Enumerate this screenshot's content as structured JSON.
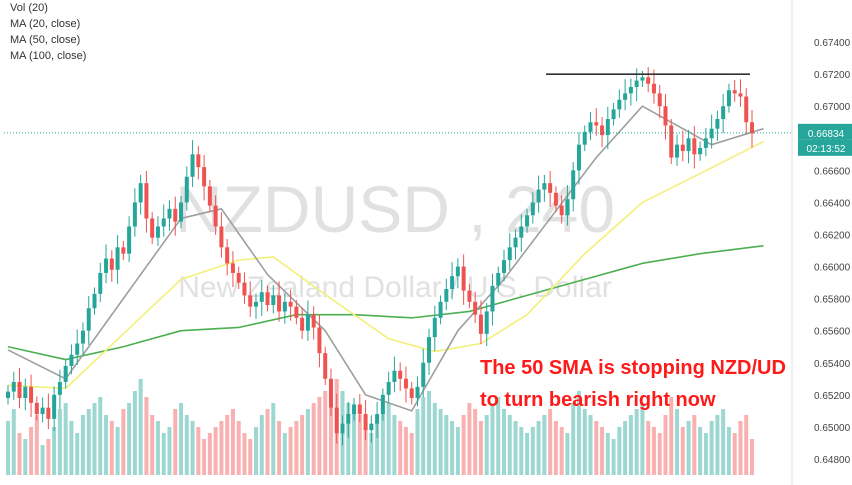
{
  "chart_data": {
    "type": "candlestick",
    "symbol": "NZDUSD",
    "interval": "240",
    "instrument_name": "New Zealand Dollar / U.S. Dollar",
    "watermark": {
      "symbol": "NZDUSD",
      "interval": "240",
      "name": "New Zealand Dollar / U.S. Dollar"
    },
    "legend": [
      "Vol (20)",
      "MA (20, close)",
      "MA (50, close)",
      "MA (100, close)"
    ],
    "y_axis": {
      "min": 0.647,
      "max": 0.676,
      "ticks": [
        "0.67400",
        "0.67200",
        "0.67000",
        "0.66800",
        "0.66600",
        "0.66400",
        "0.66200",
        "0.66000",
        "0.65800",
        "0.65600",
        "0.65400",
        "0.65200",
        "0.65000",
        "0.64800"
      ]
    },
    "last_price_label": "0.66834",
    "countdown_label": "02:13:52",
    "last_price": 0.66834,
    "resistance_level": 0.672,
    "annotation": [
      "The 50 SMA is stopping NZD/UD",
      "to turn bearish right now"
    ],
    "colors": {
      "up": "#26a69a",
      "down": "#ef5350",
      "ma20": "#9e9e9e",
      "ma50": "#f2f078",
      "ma100": "#4caf50",
      "annotation": "#ff1a1a",
      "resistance": "#333333",
      "price_label_bg": "#26a69a"
    },
    "closes": [
      0.6522,
      0.6528,
      0.6518,
      0.6525,
      0.6515,
      0.6508,
      0.6512,
      0.6505,
      0.652,
      0.6528,
      0.6538,
      0.6545,
      0.6552,
      0.656,
      0.6574,
      0.6583,
      0.6596,
      0.6605,
      0.6598,
      0.6612,
      0.6608,
      0.6625,
      0.664,
      0.6652,
      0.663,
      0.6618,
      0.6625,
      0.663,
      0.6636,
      0.6628,
      0.664,
      0.6656,
      0.667,
      0.6662,
      0.665,
      0.6638,
      0.6625,
      0.6612,
      0.6602,
      0.6596,
      0.659,
      0.6582,
      0.6575,
      0.6578,
      0.6584,
      0.6576,
      0.6582,
      0.6572,
      0.6578,
      0.6575,
      0.6568,
      0.656,
      0.657,
      0.6562,
      0.6546,
      0.653,
      0.6512,
      0.6496,
      0.6502,
      0.6508,
      0.6514,
      0.6508,
      0.6498,
      0.6502,
      0.6508,
      0.652,
      0.6528,
      0.6535,
      0.653,
      0.6524,
      0.6518,
      0.6525,
      0.654,
      0.6556,
      0.6568,
      0.6578,
      0.6586,
      0.6594,
      0.66,
      0.6585,
      0.6578,
      0.657,
      0.6558,
      0.6572,
      0.6588,
      0.6596,
      0.6604,
      0.6612,
      0.6618,
      0.6625,
      0.6632,
      0.664,
      0.6648,
      0.6652,
      0.6646,
      0.6638,
      0.6632,
      0.6642,
      0.666,
      0.6676,
      0.6684,
      0.669,
      0.6688,
      0.6682,
      0.6692,
      0.6698,
      0.6704,
      0.6708,
      0.6712,
      0.6716,
      0.6718,
      0.6714,
      0.6708,
      0.67,
      0.6688,
      0.6668,
      0.6676,
      0.6672,
      0.668,
      0.667,
      0.6674,
      0.668,
      0.6686,
      0.6692,
      0.67,
      0.671,
      0.6708,
      0.6706,
      0.669,
      0.6683
    ],
    "volumes": [
      0.45,
      0.55,
      0.35,
      0.3,
      0.4,
      0.5,
      0.25,
      0.3,
      0.4,
      0.55,
      0.6,
      0.45,
      0.35,
      0.5,
      0.55,
      0.6,
      0.65,
      0.5,
      0.45,
      0.4,
      0.55,
      0.6,
      0.7,
      0.8,
      0.65,
      0.5,
      0.45,
      0.35,
      0.4,
      0.55,
      0.6,
      0.5,
      0.45,
      0.4,
      0.3,
      0.35,
      0.4,
      0.45,
      0.5,
      0.55,
      0.45,
      0.35,
      0.3,
      0.4,
      0.5,
      0.55,
      0.6,
      0.45,
      0.35,
      0.4,
      0.45,
      0.5,
      0.55,
      0.6,
      0.65,
      0.7,
      0.75,
      0.8,
      0.7,
      0.6,
      0.55,
      0.5,
      0.4,
      0.35,
      0.45,
      0.55,
      0.6,
      0.5,
      0.45,
      0.4,
      0.35,
      0.55,
      0.65,
      0.7,
      0.6,
      0.55,
      0.5,
      0.45,
      0.4,
      0.5,
      0.6,
      0.55,
      0.45,
      0.5,
      0.6,
      0.65,
      0.55,
      0.5,
      0.45,
      0.4,
      0.35,
      0.4,
      0.45,
      0.5,
      0.55,
      0.45,
      0.4,
      0.35,
      0.6,
      0.7,
      0.55,
      0.5,
      0.45,
      0.4,
      0.35,
      0.3,
      0.4,
      0.45,
      0.5,
      0.55,
      0.6,
      0.45,
      0.4,
      0.35,
      0.5,
      0.65,
      0.55,
      0.4,
      0.45,
      0.5,
      0.4,
      0.35,
      0.45,
      0.5,
      0.55,
      0.4,
      0.35,
      0.45,
      0.5,
      0.3
    ],
    "ma20": [
      [
        0,
        0.6548
      ],
      [
        10,
        0.653
      ],
      [
        20,
        0.658
      ],
      [
        30,
        0.663
      ],
      [
        37,
        0.6636
      ],
      [
        45,
        0.6595
      ],
      [
        55,
        0.656
      ],
      [
        62,
        0.652
      ],
      [
        70,
        0.651
      ],
      [
        78,
        0.656
      ],
      [
        86,
        0.6592
      ],
      [
        94,
        0.663
      ],
      [
        102,
        0.6668
      ],
      [
        110,
        0.67
      ],
      [
        116,
        0.6688
      ],
      [
        122,
        0.6676
      ],
      [
        131,
        0.6686
      ]
    ],
    "ma50": [
      [
        0,
        0.6526
      ],
      [
        10,
        0.6524
      ],
      [
        20,
        0.6558
      ],
      [
        30,
        0.6592
      ],
      [
        40,
        0.6604
      ],
      [
        46,
        0.6606
      ],
      [
        56,
        0.658
      ],
      [
        66,
        0.6555
      ],
      [
        74,
        0.6547
      ],
      [
        82,
        0.6552
      ],
      [
        90,
        0.657
      ],
      [
        100,
        0.6608
      ],
      [
        110,
        0.664
      ],
      [
        120,
        0.6658
      ],
      [
        131,
        0.6678
      ]
    ],
    "ma100": [
      [
        0,
        0.655
      ],
      [
        10,
        0.6542
      ],
      [
        20,
        0.655
      ],
      [
        30,
        0.656
      ],
      [
        40,
        0.6562
      ],
      [
        50,
        0.657
      ],
      [
        60,
        0.657
      ],
      [
        70,
        0.6568
      ],
      [
        80,
        0.6572
      ],
      [
        90,
        0.6582
      ],
      [
        100,
        0.6592
      ],
      [
        110,
        0.6602
      ],
      [
        120,
        0.6608
      ],
      [
        131,
        0.6613
      ]
    ],
    "grid": false,
    "legend_position": "top-left"
  }
}
